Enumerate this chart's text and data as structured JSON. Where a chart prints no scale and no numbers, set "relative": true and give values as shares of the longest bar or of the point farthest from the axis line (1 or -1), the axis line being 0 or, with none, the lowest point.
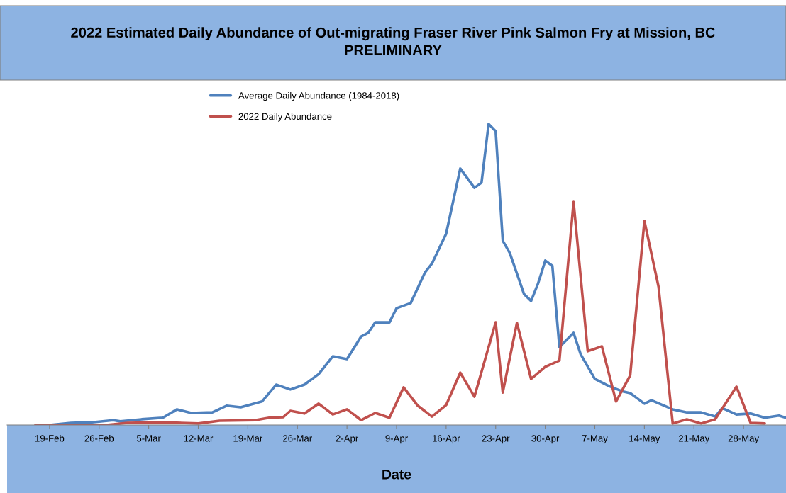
{
  "chart_data": {
    "type": "line",
    "title": "2022 Estimated Daily Abundance of Out-migrating Fraser River Pink Salmon Fry at Mission, BC\nPRELIMINARY",
    "xlabel": "Date",
    "relative": true,
    "legend": "top left",
    "grid": false,
    "xlim": [
      "2022-02-13",
      "2022-06-03"
    ],
    "xticks": [
      {
        "value": "2022-02-19",
        "label": "19-Feb"
      },
      {
        "value": "2022-02-26",
        "label": "26-Feb"
      },
      {
        "value": "2022-03-05",
        "label": "5-Mar"
      },
      {
        "value": "2022-03-12",
        "label": "12-Mar"
      },
      {
        "value": "2022-03-19",
        "label": "19-Mar"
      },
      {
        "value": "2022-03-26",
        "label": "26-Mar"
      },
      {
        "value": "2022-04-02",
        "label": "2-Apr"
      },
      {
        "value": "2022-04-09",
        "label": "9-Apr"
      },
      {
        "value": "2022-04-16",
        "label": "16-Apr"
      },
      {
        "value": "2022-04-23",
        "label": "23-Apr"
      },
      {
        "value": "2022-04-30",
        "label": "30-Apr"
      },
      {
        "value": "2022-05-07",
        "label": "7-May"
      },
      {
        "value": "2022-05-14",
        "label": "14-May"
      },
      {
        "value": "2022-05-21",
        "label": "21-May"
      },
      {
        "value": "2022-05-28",
        "label": "28-May"
      }
    ],
    "series": [
      {
        "name": "Average Daily Abundance (1984-2018)",
        "color": "#4f81bd",
        "x": [
          "2022-02-19",
          "2022-02-22",
          "2022-02-25",
          "2022-02-28",
          "2022-03-01",
          "2022-03-04",
          "2022-03-07",
          "2022-03-09",
          "2022-03-11",
          "2022-03-14",
          "2022-03-16",
          "2022-03-18",
          "2022-03-21",
          "2022-03-23",
          "2022-03-25",
          "2022-03-27",
          "2022-03-29",
          "2022-03-31",
          "2022-04-02",
          "2022-04-04",
          "2022-04-05",
          "2022-04-06",
          "2022-04-08",
          "2022-04-09",
          "2022-04-11",
          "2022-04-13",
          "2022-04-14",
          "2022-04-16",
          "2022-04-18",
          "2022-04-20",
          "2022-04-21",
          "2022-04-22",
          "2022-04-23",
          "2022-04-24",
          "2022-04-25",
          "2022-04-27",
          "2022-04-28",
          "2022-04-29",
          "2022-04-30",
          "2022-05-01",
          "2022-05-02",
          "2022-05-04",
          "2022-05-05",
          "2022-05-07",
          "2022-05-09",
          "2022-05-11",
          "2022-05-12",
          "2022-05-14",
          "2022-05-15",
          "2022-05-18",
          "2022-05-20",
          "2022-05-22",
          "2022-05-24",
          "2022-05-25",
          "2022-05-27",
          "2022-05-29",
          "2022-05-31",
          "2022-06-02",
          "2022-06-03"
        ],
        "values": [
          0.0,
          0.007,
          0.009,
          0.016,
          0.012,
          0.019,
          0.024,
          0.052,
          0.04,
          0.042,
          0.064,
          0.059,
          0.078,
          0.134,
          0.118,
          0.134,
          0.169,
          0.228,
          0.219,
          0.294,
          0.306,
          0.341,
          0.341,
          0.388,
          0.405,
          0.506,
          0.536,
          0.635,
          0.852,
          0.788,
          0.805,
          1.0,
          0.976,
          0.612,
          0.571,
          0.435,
          0.412,
          0.471,
          0.546,
          0.529,
          0.259,
          0.306,
          0.235,
          0.153,
          0.129,
          0.111,
          0.106,
          0.071,
          0.082,
          0.052,
          0.042,
          0.042,
          0.028,
          0.056,
          0.035,
          0.038,
          0.024,
          0.031,
          0.024
        ]
      },
      {
        "name": "2022 Daily Abundance",
        "color": "#c0504d",
        "x": [
          "2022-02-17",
          "2022-02-27",
          "2022-03-02",
          "2022-03-07",
          "2022-03-12",
          "2022-03-15",
          "2022-03-20",
          "2022-03-22",
          "2022-03-24",
          "2022-03-25",
          "2022-03-27",
          "2022-03-29",
          "2022-03-31",
          "2022-04-02",
          "2022-04-04",
          "2022-04-06",
          "2022-04-08",
          "2022-04-10",
          "2022-04-12",
          "2022-04-14",
          "2022-04-16",
          "2022-04-18",
          "2022-04-20",
          "2022-04-23",
          "2022-04-24",
          "2022-04-26",
          "2022-04-28",
          "2022-04-30",
          "2022-05-02",
          "2022-05-04",
          "2022-05-06",
          "2022-05-08",
          "2022-05-10",
          "2022-05-12",
          "2022-05-14",
          "2022-05-16",
          "2022-05-18",
          "2022-05-20",
          "2022-05-22",
          "2022-05-24",
          "2022-05-27",
          "2022-05-29",
          "2022-05-31"
        ],
        "values": [
          0.0,
          0.0,
          0.007,
          0.009,
          0.005,
          0.014,
          0.016,
          0.024,
          0.026,
          0.047,
          0.038,
          0.071,
          0.035,
          0.052,
          0.016,
          0.04,
          0.024,
          0.125,
          0.064,
          0.028,
          0.066,
          0.174,
          0.094,
          0.341,
          0.108,
          0.339,
          0.153,
          0.193,
          0.214,
          0.741,
          0.245,
          0.261,
          0.078,
          0.165,
          0.678,
          0.459,
          0.005,
          0.019,
          0.005,
          0.019,
          0.127,
          0.007,
          0.005
        ]
      }
    ]
  }
}
